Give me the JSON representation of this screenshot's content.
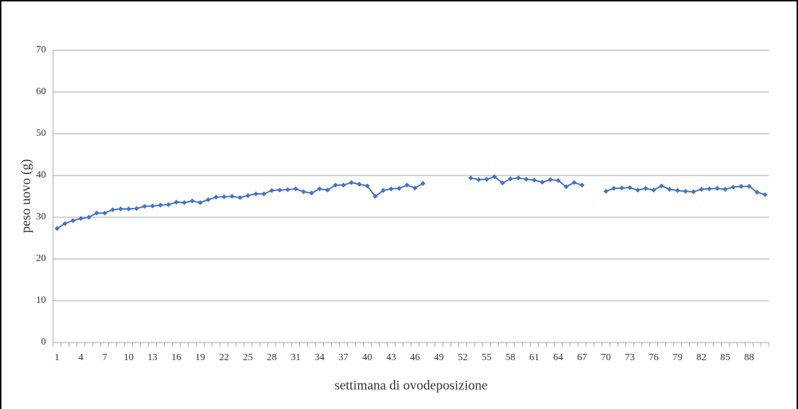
{
  "chart_data": {
    "type": "line",
    "y_label": "peso uovo (g)",
    "x_label": "settimana di ovodeposizione",
    "categories": [
      "1",
      null,
      null,
      "4",
      null,
      null,
      "7",
      null,
      null,
      "10",
      null,
      null,
      "13",
      null,
      null,
      "16",
      null,
      null,
      "19",
      null,
      null,
      "22",
      null,
      null,
      "25",
      null,
      null,
      "28",
      null,
      null,
      "31",
      null,
      null,
      "34",
      null,
      null,
      "37",
      null,
      null,
      "40",
      null,
      null,
      "43",
      null,
      null,
      "46",
      null,
      null,
      "49",
      null,
      null,
      "52",
      null,
      null,
      "55",
      null,
      null,
      "58",
      null,
      null,
      "61",
      null,
      null,
      "64",
      null,
      null,
      "67",
      null,
      null,
      "70",
      null,
      null,
      "73",
      null,
      null,
      "76",
      null,
      null,
      "79",
      null,
      null,
      "82",
      null,
      null,
      "85",
      null,
      null,
      "88",
      null,
      null
    ],
    "values": [
      27.3,
      28.5,
      29.2,
      29.7,
      30.0,
      31.0,
      31.0,
      31.8,
      32.0,
      32.0,
      32.1,
      32.6,
      32.7,
      32.9,
      33.0,
      33.6,
      33.5,
      33.9,
      33.5,
      34.2,
      34.8,
      34.9,
      35.0,
      34.7,
      35.2,
      35.6,
      35.6,
      36.4,
      36.5,
      36.6,
      36.8,
      36.1,
      35.8,
      36.8,
      36.5,
      37.7,
      37.7,
      38.3,
      37.9,
      37.5,
      35.0,
      36.4,
      36.8,
      36.9,
      37.7,
      37.0,
      38.1,
      null,
      null,
      null,
      null,
      null,
      39.4,
      39.0,
      39.1,
      39.7,
      38.2,
      39.2,
      39.4,
      39.1,
      38.9,
      38.4,
      39.0,
      38.8,
      37.3,
      38.3,
      37.7,
      null,
      null,
      36.2,
      36.9,
      37.0,
      37.1,
      36.5,
      36.9,
      36.5,
      37.5,
      36.7,
      36.4,
      36.2,
      36.1,
      36.7,
      36.8,
      36.9,
      36.7,
      37.2,
      37.4,
      37.4,
      36.0,
      35.4
    ],
    "color": "#4472c4",
    "ylim": [
      0,
      70
    ],
    "yticks": [
      0,
      10,
      20,
      30,
      40,
      50,
      60,
      70
    ],
    "grid": true
  }
}
